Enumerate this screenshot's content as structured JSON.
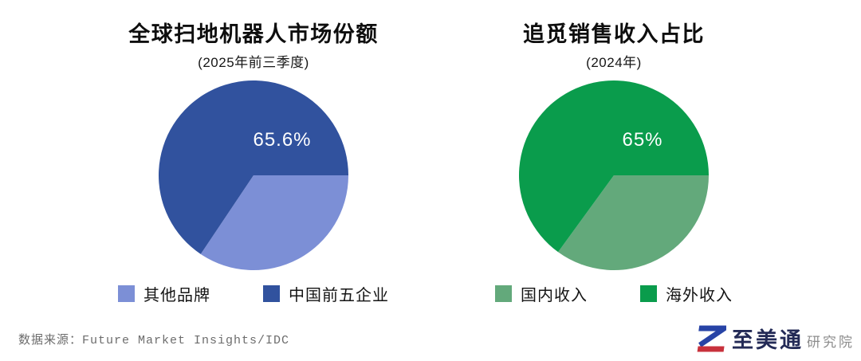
{
  "page": {
    "background": "#FFFFFF"
  },
  "chart_data": [
    {
      "type": "pie",
      "title": "全球扫地机器人市场份额",
      "subtitle": "(2025年前三季度)",
      "categories": [
        "其他品牌",
        "中国前五企业"
      ],
      "values": [
        34.4,
        65.6
      ],
      "colors": [
        "#7C8FD6",
        "#31529E"
      ],
      "data_label": "65.6%",
      "data_label_color": "#FFFFFF",
      "start_angle_deg": 0,
      "direction": "clockwise",
      "legend_position": "bottom"
    },
    {
      "type": "pie",
      "title": "追觅销售收入占比",
      "subtitle": "(2024年)",
      "categories": [
        "国内收入",
        "海外收入"
      ],
      "values": [
        35,
        65
      ],
      "colors": [
        "#63A97B",
        "#0A9C4C"
      ],
      "data_label": "65%",
      "data_label_color": "#FFFFFF",
      "start_angle_deg": 0,
      "direction": "clockwise",
      "legend_position": "bottom"
    }
  ],
  "footer": {
    "source": "数据来源：Future Market Insights/IDC",
    "logo": {
      "mark": "Z-mark",
      "mark_blue": "#2743A6",
      "mark_red": "#C8313C",
      "name": "至美通",
      "suffix": "研究院"
    }
  }
}
